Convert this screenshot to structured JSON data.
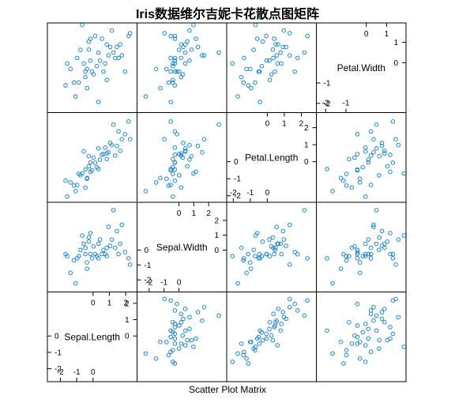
{
  "title": "Iris数据维尔吉妮卡花散点图矩阵",
  "xlabel": "Scatter Plot Matrix",
  "colors": {
    "point": "#1f86c0",
    "frame": "#000000"
  },
  "chart_data": {
    "type": "scatter",
    "variables": [
      "Sepal.Length",
      "Sepal.Width",
      "Petal.Length",
      "Petal.Width"
    ],
    "diagonal_order": [
      "Petal.Width",
      "Petal.Length",
      "Sepal.Width",
      "Sepal.Length"
    ],
    "ranges": {
      "Sepal.Length": [
        -2.6,
        2.5
      ],
      "Sepal.Width": [
        -2.6,
        3.0
      ],
      "Petal.Length": [
        -2.2,
        2.7
      ],
      "Petal.Width": [
        -2.3,
        1.8
      ]
    },
    "ticks": {
      "Sepal.Length": {
        "upper": [
          0,
          1,
          2
        ],
        "lower": [
          -2,
          -1,
          0
        ]
      },
      "Sepal.Width": {
        "upper": [
          0,
          1,
          2
        ],
        "lower": [
          -2,
          -1,
          0
        ]
      },
      "Petal.Length": {
        "upper": [
          0,
          1,
          2
        ],
        "lower": [
          -2,
          -1,
          0
        ]
      },
      "Petal.Width": {
        "upper": [
          0,
          1
        ],
        "lower": [
          -2,
          -1
        ]
      }
    },
    "data": [
      [
        -0.66,
        0.98,
        -0.69,
        1.85
      ],
      [
        2.17,
        -0.55,
        2.36,
        1.31
      ],
      [
        1.56,
        -0.27,
        1.78,
        0.23
      ],
      [
        1.66,
        0.43,
        0.64,
        0.9
      ],
      [
        0.84,
        0.15,
        0.49,
        0.9
      ],
      [
        1.15,
        0.71,
        0.97,
        1.58
      ],
      [
        0.13,
        -0.27,
        -0.06,
        1.31
      ],
      [
        0.33,
        0.43,
        0.78,
        0.5
      ],
      [
        -0.37,
        -0.83,
        -1.0,
        -0.31
      ],
      [
        0.84,
        -0.41,
        0.15,
        -0.85
      ],
      [
        -0.16,
        -0.27,
        -0.04,
        0.1
      ],
      [
        -0.06,
        -0.55,
        -0.51,
        -0.44
      ],
      [
        -1.07,
        -2.23,
        -1.73,
        -1.66
      ],
      [
        -0.97,
        -0.55,
        -1.37,
        0.23
      ],
      [
        -0.16,
        1.14,
        -0.59,
        1.18
      ],
      [
        -0.47,
        -0.27,
        -0.46,
        -0.44
      ],
      [
        1.35,
        0.15,
        0.36,
        0.23
      ],
      [
        0.74,
        -0.27,
        0.83,
        -0.04
      ],
      [
        0.03,
        0.25,
        0.24,
        -0.58
      ],
      [
        -1.17,
        -0.69,
        -1.4,
        -0.98
      ],
      [
        0.43,
        0.71,
        0.12,
        0.1
      ],
      [
        -1.38,
        -1.53,
        -1.22,
        -0.31
      ],
      [
        -1.58,
        -0.41,
        -2.05,
        -0.04
      ],
      [
        -0.26,
        0.57,
        -0.27,
        1.04
      ],
      [
        1.05,
        0.29,
        1.1,
        0.77
      ],
      [
        0.23,
        -0.41,
        -0.33,
        -0.17
      ],
      [
        -0.26,
        0.85,
        0.32,
        0.64
      ],
      [
        0.94,
        1.56,
        0.55,
        0.36
      ],
      [
        2.27,
        -0.97,
        1.32,
        1.45
      ],
      [
        -0.77,
        0.01,
        -0.8,
        0.63
      ],
      [
        1.96,
        -0.13,
        1.62,
        -0.44
      ],
      [
        -1.68,
        -0.27,
        -1.12,
        -1.12
      ],
      [
        0.54,
        -0.27,
        0.41,
        1.18
      ],
      [
        1.76,
        1.7,
        1.32,
        0.36
      ],
      [
        -0.87,
        -0.41,
        -0.72,
        -0.98
      ],
      [
        0.33,
        -0.55,
        -0.43,
        -1.93
      ],
      [
        -0.47,
        0.15,
        -1.52,
        -0.71
      ],
      [
        1.25,
        2.68,
        2.18,
        0.5
      ],
      [
        -0.57,
        0.43,
        0.6,
        -0.04
      ],
      [
        1.46,
        1.28,
        0.92,
        0.77
      ],
      [
        0.64,
        0.01,
        0.45,
        -0.44
      ],
      [
        -0.36,
        -1.25,
        -0.96,
        -1.25
      ]
    ]
  }
}
